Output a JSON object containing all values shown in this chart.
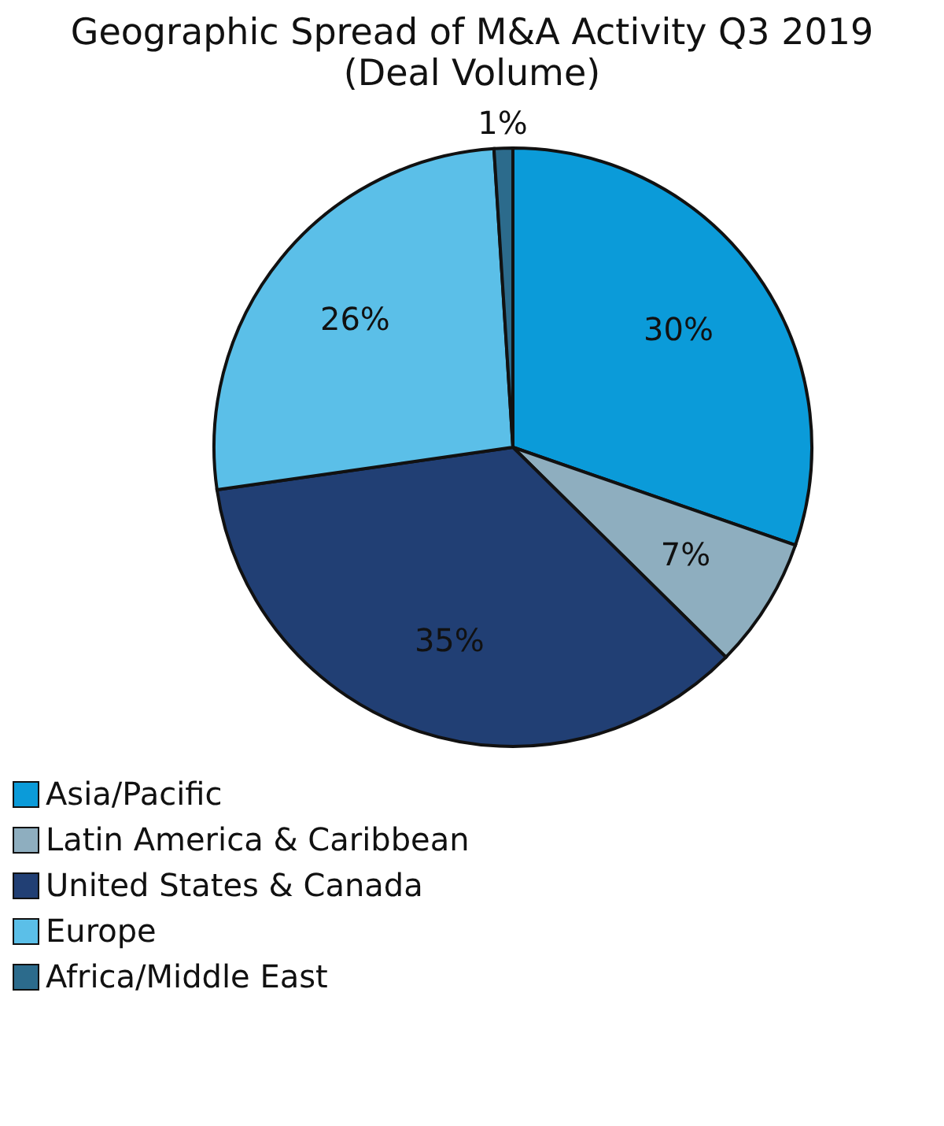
{
  "chart_data": {
    "type": "pie",
    "title": "Geographic Spread of M&A Activity Q3 2019",
    "subtitle": "(Deal Volume)",
    "categories": [
      "Asia/Pacific",
      "Latin America & Caribbean",
      "United States & Canada",
      "Europe",
      "Africa/Middle East"
    ],
    "values": [
      30,
      7,
      35,
      26,
      1
    ],
    "value_labels": [
      "30%",
      "7%",
      "35%",
      "26%",
      "1%"
    ],
    "colors": [
      "#0b9bd9",
      "#8eaebf",
      "#213f74",
      "#5bbfe8",
      "#2c6b8c"
    ],
    "legend": "bottom left"
  }
}
